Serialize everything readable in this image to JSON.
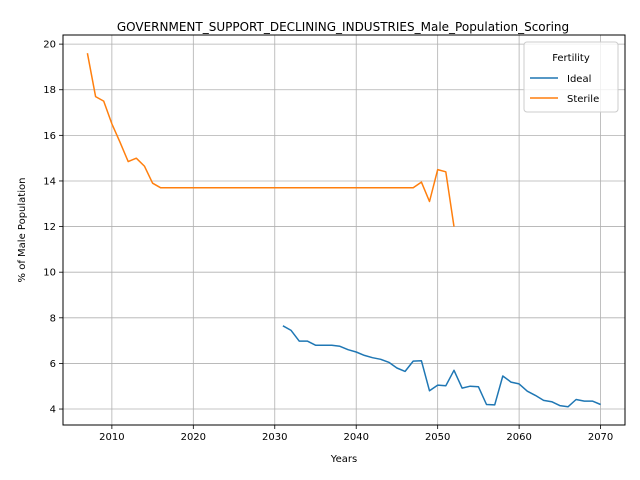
{
  "chart_data": {
    "type": "line",
    "title": "GOVERNMENT_SUPPORT_DECLINING_INDUSTRIES_Male_Population_Scoring",
    "xlabel": "Years",
    "ylabel": "% of Male Population",
    "xlim": [
      2004,
      2073
    ],
    "ylim": [
      3.3,
      20.4
    ],
    "xticks": [
      "2010",
      "2020",
      "2030",
      "2040",
      "2050",
      "2060",
      "2070"
    ],
    "yticks": [
      "4",
      "6",
      "8",
      "10",
      "12",
      "14",
      "16",
      "18",
      "20"
    ],
    "grid": true,
    "legend": {
      "title": "Fertility",
      "position": "top-right"
    },
    "series": [
      {
        "name": "Ideal",
        "color": "#1f77b4",
        "x": [
          2031,
          2032,
          2033,
          2034,
          2035,
          2036,
          2037,
          2038,
          2039,
          2040,
          2041,
          2042,
          2043,
          2044,
          2045,
          2046,
          2047,
          2048,
          2049,
          2050,
          2051,
          2052,
          2053,
          2054,
          2055,
          2056,
          2057,
          2058,
          2059,
          2060,
          2061,
          2062,
          2063,
          2064,
          2065,
          2066,
          2067,
          2068,
          2069,
          2070
        ],
        "y": [
          7.65,
          7.45,
          6.98,
          6.98,
          6.8,
          6.8,
          6.8,
          6.75,
          6.6,
          6.5,
          6.35,
          6.25,
          6.18,
          6.05,
          5.8,
          5.65,
          6.1,
          6.12,
          4.8,
          5.05,
          5.02,
          5.7,
          4.92,
          5.0,
          4.98,
          4.2,
          4.18,
          5.45,
          5.18,
          5.1,
          4.78,
          4.6,
          4.38,
          4.32,
          4.15,
          4.1,
          4.42,
          4.35,
          4.35,
          4.2
        ]
      },
      {
        "name": "Sterile",
        "color": "#ff7f0e",
        "x": [
          2007,
          2008,
          2009,
          2010,
          2011,
          2012,
          2013,
          2014,
          2015,
          2016,
          2017,
          2018,
          2019,
          2020,
          2021,
          2022,
          2023,
          2024,
          2025,
          2026,
          2027,
          2028,
          2029,
          2030,
          2031,
          2032,
          2033,
          2034,
          2035,
          2036,
          2037,
          2038,
          2039,
          2040,
          2041,
          2042,
          2043,
          2044,
          2045,
          2046,
          2047,
          2048,
          2049,
          2050,
          2051,
          2052
        ],
        "y": [
          19.6,
          17.7,
          17.5,
          16.5,
          15.7,
          14.85,
          15.0,
          14.65,
          13.9,
          13.7,
          13.7,
          13.7,
          13.7,
          13.7,
          13.7,
          13.7,
          13.7,
          13.7,
          13.7,
          13.7,
          13.7,
          13.7,
          13.7,
          13.7,
          13.7,
          13.7,
          13.7,
          13.7,
          13.7,
          13.7,
          13.7,
          13.7,
          13.7,
          13.7,
          13.7,
          13.7,
          13.7,
          13.7,
          13.7,
          13.7,
          13.7,
          13.95,
          13.1,
          14.5,
          14.4,
          12.0
        ]
      }
    ]
  }
}
